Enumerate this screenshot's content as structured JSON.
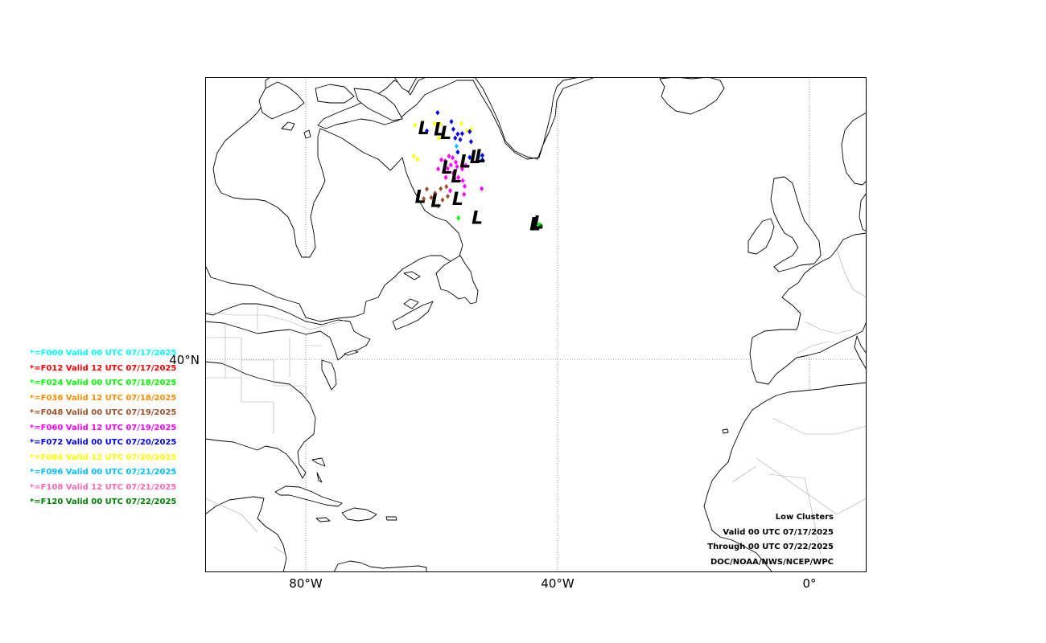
{
  "map": {
    "projection": "cylindrical",
    "lon_range": [
      -96,
      9
    ],
    "lat_range": [
      6,
      85
    ],
    "gridlines": "dotted",
    "lon_ticks": [
      {
        "lon": -80,
        "label": "80°W"
      },
      {
        "lon": -40,
        "label": "40°W"
      },
      {
        "lon": 0,
        "label": "0°"
      }
    ],
    "lat_ticks": [
      {
        "lat": 40,
        "label": "40°N"
      }
    ]
  },
  "legend": [
    {
      "label": "*=F000 Valid 00 UTC 07/17/2025",
      "color": "#00ffff"
    },
    {
      "label": "*=F012 Valid 12 UTC 07/17/2025",
      "color": "#ff0000"
    },
    {
      "label": "*=F024 Valid 00 UTC 07/18/2025",
      "color": "#00ff00"
    },
    {
      "label": "*=F036 Valid 12 UTC 07/18/2025",
      "color": "#ff8c00"
    },
    {
      "label": "*=F048 Valid 00 UTC 07/19/2025",
      "color": "#a0522d"
    },
    {
      "label": "*=F060 Valid 12 UTC 07/19/2025",
      "color": "#ff00ff"
    },
    {
      "label": "*=F072 Valid 00 UTC 07/20/2025",
      "color": "#0000ff"
    },
    {
      "label": "*=F084 Valid 12 UTC 07/20/2025",
      "color": "#ffff00"
    },
    {
      "label": "*=F096 Valid 00 UTC 07/21/2025",
      "color": "#00bfff"
    },
    {
      "label": "*=F108 Valid 12 UTC 07/21/2025",
      "color": "#ff69b4"
    },
    {
      "label": "*=F120 Valid 00 UTC 07/22/2025",
      "color": "#008000"
    }
  ],
  "info": {
    "line1": "Low Clusters",
    "line2": "Valid 00 UTC 07/17/2025",
    "line3": "Through 00 UTC 07/22/2025",
    "line4": "DOC/NOAA/NWS/NCEP/WPC"
  },
  "low_symbol": "L",
  "lows": [
    {
      "lon": -61.3,
      "lat": 75.9
    },
    {
      "lon": -58.8,
      "lat": 75.7
    },
    {
      "lon": -57.8,
      "lat": 75.1
    },
    {
      "lon": -57.6,
      "lat": 69.6
    },
    {
      "lon": -54.7,
      "lat": 70.6
    },
    {
      "lon": -53.1,
      "lat": 71.3
    },
    {
      "lon": -52.3,
      "lat": 71.4
    },
    {
      "lon": -56.1,
      "lat": 68.2
    },
    {
      "lon": -61.8,
      "lat": 64.9
    },
    {
      "lon": -59.3,
      "lat": 64.3
    },
    {
      "lon": -55.9,
      "lat": 64.6
    },
    {
      "lon": -52.8,
      "lat": 61.6
    },
    {
      "lon": -43.1,
      "lat": 60.8
    },
    {
      "lon": -43.6,
      "lat": 60.6
    }
  ],
  "members": [
    {
      "lon": -62.7,
      "lat": 76.9,
      "c": 7
    },
    {
      "lon": -59.6,
      "lat": 77.2,
      "c": 7
    },
    {
      "lon": -58.7,
      "lat": 77.1,
      "c": 7
    },
    {
      "lon": -55.3,
      "lat": 77.2,
      "c": 7
    },
    {
      "lon": -54.4,
      "lat": 76.1,
      "c": 7
    },
    {
      "lon": -53.7,
      "lat": 76.3,
      "c": 7
    },
    {
      "lon": -58.9,
      "lat": 74.9,
      "c": 7
    },
    {
      "lon": -58.1,
      "lat": 75.3,
      "c": 7
    },
    {
      "lon": -62.9,
      "lat": 72.0,
      "c": 7
    },
    {
      "lon": -59.1,
      "lat": 78.9,
      "c": 6
    },
    {
      "lon": -56.9,
      "lat": 77.5,
      "c": 6
    },
    {
      "lon": -55.9,
      "lat": 75.5,
      "c": 6
    },
    {
      "lon": -55.2,
      "lat": 75.6,
      "c": 6
    },
    {
      "lon": -56.3,
      "lat": 74.9,
      "c": 6
    },
    {
      "lon": -55.5,
      "lat": 74.6,
      "c": 6
    },
    {
      "lon": -60.8,
      "lat": 76.0,
      "c": 6
    },
    {
      "lon": -54.0,
      "lat": 75.9,
      "c": 6
    },
    {
      "lon": -55.9,
      "lat": 72.6,
      "c": 6
    },
    {
      "lon": -53.8,
      "lat": 74.3,
      "c": 6
    },
    {
      "lon": -56.6,
      "lat": 76.3,
      "c": 6
    },
    {
      "lon": -52.0,
      "lat": 72.1,
      "c": 6
    },
    {
      "lon": -52.0,
      "lat": 71.4,
      "c": 6
    },
    {
      "lon": -54.0,
      "lat": 71.8,
      "c": 6
    },
    {
      "lon": -57.3,
      "lat": 72.0,
      "c": 5
    },
    {
      "lon": -56.7,
      "lat": 71.7,
      "c": 5
    },
    {
      "lon": -57.9,
      "lat": 71.2,
      "c": 5
    },
    {
      "lon": -56.2,
      "lat": 71.0,
      "c": 5
    },
    {
      "lon": -57.0,
      "lat": 70.6,
      "c": 5
    },
    {
      "lon": -56.0,
      "lat": 70.3,
      "c": 5
    },
    {
      "lon": -57.5,
      "lat": 70.0,
      "c": 5
    },
    {
      "lon": -55.2,
      "lat": 69.9,
      "c": 5
    },
    {
      "lon": -56.6,
      "lat": 69.3,
      "c": 5
    },
    {
      "lon": -57.8,
      "lat": 68.6,
      "c": 5
    },
    {
      "lon": -56.4,
      "lat": 68.4,
      "c": 5
    },
    {
      "lon": -55.1,
      "lat": 68.1,
      "c": 5
    },
    {
      "lon": -54.6,
      "lat": 70.5,
      "c": 5
    },
    {
      "lon": -58.5,
      "lat": 71.4,
      "c": 5
    },
    {
      "lon": -59.0,
      "lat": 69.9,
      "c": 5
    },
    {
      "lon": -54.9,
      "lat": 65.9,
      "c": 5
    },
    {
      "lon": -52.1,
      "lat": 66.8,
      "c": 5
    },
    {
      "lon": -57.1,
      "lat": 66.5,
      "c": 5
    },
    {
      "lon": -55.8,
      "lat": 68.6,
      "c": 5
    },
    {
      "lon": -54.8,
      "lat": 67.2,
      "c": 5
    },
    {
      "lon": -62.3,
      "lat": 71.5,
      "c": 7
    },
    {
      "lon": -60.8,
      "lat": 66.7,
      "c": 4
    },
    {
      "lon": -59.5,
      "lat": 66.1,
      "c": 4
    },
    {
      "lon": -58.6,
      "lat": 66.8,
      "c": 4
    },
    {
      "lon": -57.7,
      "lat": 67.1,
      "c": 4
    },
    {
      "lon": -60.1,
      "lat": 65.4,
      "c": 4
    },
    {
      "lon": -58.3,
      "lat": 65.0,
      "c": 4
    },
    {
      "lon": -57.5,
      "lat": 65.6,
      "c": 4
    },
    {
      "lon": -59.0,
      "lat": 64.0,
      "c": 4
    },
    {
      "lon": -61.3,
      "lat": 65.2,
      "c": 4
    },
    {
      "lon": -55.8,
      "lat": 62.1,
      "c": 2
    },
    {
      "lon": -43.0,
      "lat": 61.1,
      "c": 2
    },
    {
      "lon": -42.7,
      "lat": 60.9,
      "c": 10
    },
    {
      "lon": -52.5,
      "lat": 72.0,
      "c": 8
    },
    {
      "lon": -56.1,
      "lat": 73.6,
      "c": 8
    }
  ]
}
